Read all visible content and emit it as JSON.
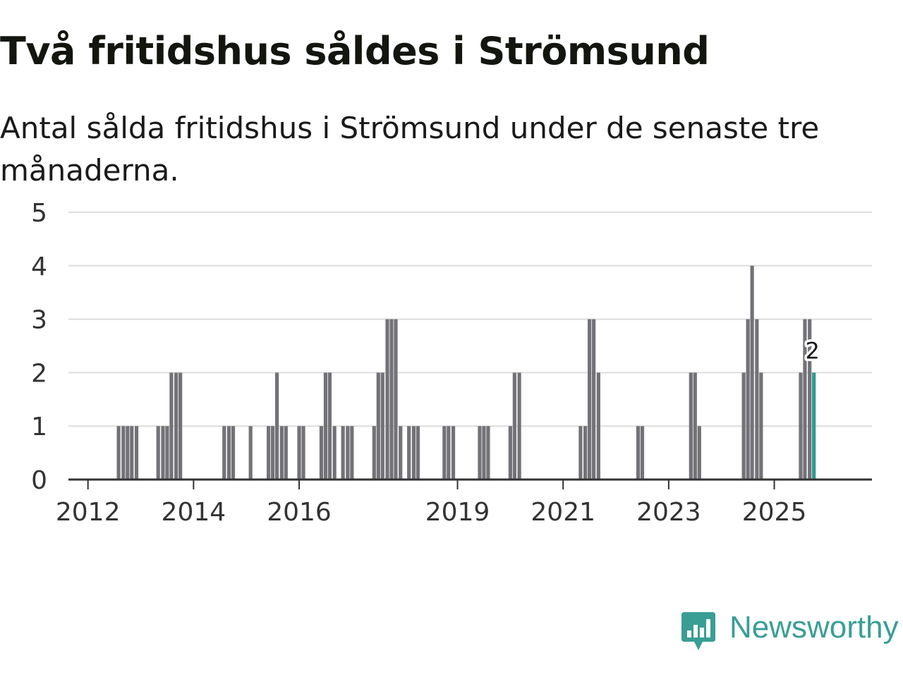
{
  "title": "Två fritidshus såldes i Strömsund",
  "subtitle": "Antal sålda fritidshus i Strömsund under de senaste tre månaderna.",
  "brand": {
    "name": "Newsworthy",
    "icon": "newsworthy-logo-icon",
    "color": "#3a9e95"
  },
  "colors": {
    "bar": "#737278",
    "highlight": "#2a9d8f",
    "grid": "#dddddd",
    "axis": "#333333"
  },
  "chart_data": {
    "type": "bar",
    "title": "Två fritidshus såldes i Strömsund",
    "xlabel": "",
    "ylabel": "",
    "ylim": [
      0,
      5
    ],
    "yticks": [
      0,
      1,
      2,
      3,
      4,
      5
    ],
    "xlim": [
      2011.63,
      2026.85
    ],
    "xticks": [
      {
        "value": 2012,
        "label": "2012"
      },
      {
        "value": 2014,
        "label": "2014"
      },
      {
        "value": 2016,
        "label": "2016"
      },
      {
        "value": 2019,
        "label": "2019"
      },
      {
        "value": 2021,
        "label": "2021"
      },
      {
        "value": 2023,
        "label": "2023"
      },
      {
        "value": 2025,
        "label": "2025"
      }
    ],
    "grid": true,
    "series": [
      {
        "name": "Antal sålda fritidshus",
        "points": [
          {
            "t": 2012.58,
            "v": 1
          },
          {
            "t": 2012.67,
            "v": 1
          },
          {
            "t": 2012.75,
            "v": 1
          },
          {
            "t": 2012.83,
            "v": 1
          },
          {
            "t": 2012.92,
            "v": 1
          },
          {
            "t": 2013.33,
            "v": 1
          },
          {
            "t": 2013.42,
            "v": 1
          },
          {
            "t": 2013.5,
            "v": 1
          },
          {
            "t": 2013.58,
            "v": 2
          },
          {
            "t": 2013.67,
            "v": 2
          },
          {
            "t": 2013.75,
            "v": 2
          },
          {
            "t": 2014.58,
            "v": 1
          },
          {
            "t": 2014.67,
            "v": 1
          },
          {
            "t": 2014.75,
            "v": 1
          },
          {
            "t": 2015.08,
            "v": 1
          },
          {
            "t": 2015.42,
            "v": 1
          },
          {
            "t": 2015.5,
            "v": 1
          },
          {
            "t": 2015.58,
            "v": 2
          },
          {
            "t": 2015.67,
            "v": 1
          },
          {
            "t": 2015.75,
            "v": 1
          },
          {
            "t": 2016.0,
            "v": 1
          },
          {
            "t": 2016.08,
            "v": 1
          },
          {
            "t": 2016.42,
            "v": 1
          },
          {
            "t": 2016.5,
            "v": 2
          },
          {
            "t": 2016.58,
            "v": 2
          },
          {
            "t": 2016.67,
            "v": 1
          },
          {
            "t": 2016.83,
            "v": 1
          },
          {
            "t": 2016.92,
            "v": 1
          },
          {
            "t": 2017.0,
            "v": 1
          },
          {
            "t": 2017.42,
            "v": 1
          },
          {
            "t": 2017.5,
            "v": 2
          },
          {
            "t": 2017.58,
            "v": 2
          },
          {
            "t": 2017.67,
            "v": 3
          },
          {
            "t": 2017.75,
            "v": 3
          },
          {
            "t": 2017.83,
            "v": 3
          },
          {
            "t": 2017.92,
            "v": 1
          },
          {
            "t": 2018.08,
            "v": 1
          },
          {
            "t": 2018.17,
            "v": 1
          },
          {
            "t": 2018.25,
            "v": 1
          },
          {
            "t": 2018.75,
            "v": 1
          },
          {
            "t": 2018.83,
            "v": 1
          },
          {
            "t": 2018.92,
            "v": 1
          },
          {
            "t": 2019.42,
            "v": 1
          },
          {
            "t": 2019.5,
            "v": 1
          },
          {
            "t": 2019.58,
            "v": 1
          },
          {
            "t": 2020.0,
            "v": 1
          },
          {
            "t": 2020.08,
            "v": 2
          },
          {
            "t": 2020.17,
            "v": 2
          },
          {
            "t": 2021.33,
            "v": 1
          },
          {
            "t": 2021.42,
            "v": 1
          },
          {
            "t": 2021.5,
            "v": 3
          },
          {
            "t": 2021.58,
            "v": 3
          },
          {
            "t": 2021.67,
            "v": 2
          },
          {
            "t": 2022.42,
            "v": 1
          },
          {
            "t": 2022.5,
            "v": 1
          },
          {
            "t": 2023.42,
            "v": 2
          },
          {
            "t": 2023.5,
            "v": 2
          },
          {
            "t": 2023.58,
            "v": 1
          },
          {
            "t": 2024.42,
            "v": 2
          },
          {
            "t": 2024.5,
            "v": 3
          },
          {
            "t": 2024.58,
            "v": 4
          },
          {
            "t": 2024.67,
            "v": 3
          },
          {
            "t": 2024.75,
            "v": 2
          },
          {
            "t": 2025.5,
            "v": 2
          },
          {
            "t": 2025.58,
            "v": 3
          },
          {
            "t": 2025.67,
            "v": 3
          },
          {
            "t": 2025.75,
            "v": 2,
            "highlight": true,
            "label": "2"
          }
        ]
      }
    ]
  }
}
